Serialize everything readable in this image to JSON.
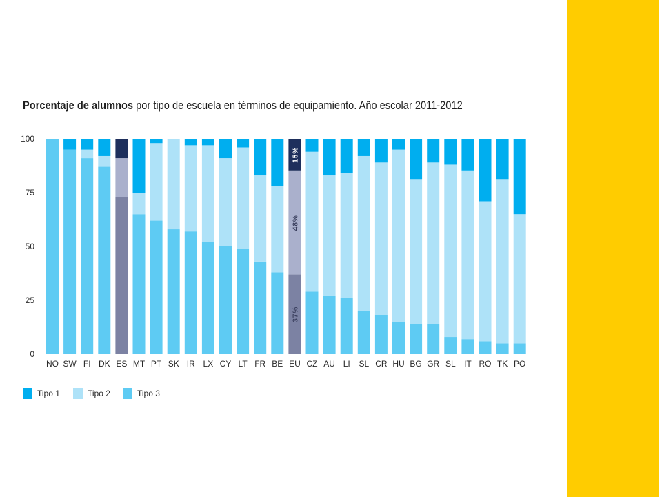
{
  "title_bold": "Porcentaje de alumnos",
  "title_rest": " por tipo de escuela en términos de equipamiento. Año escolar 2011-2012",
  "colors": {
    "tipo1": "#00aeef",
    "tipo2": "#aee2f8",
    "tipo3": "#5ecbf3",
    "es_tipo1": "#1e2f5c",
    "es_tipo2": "#aab0cc",
    "es_tipo3": "#7c82a3",
    "side_band": "#ffcc00"
  },
  "chart_data": {
    "type": "bar",
    "stacked": true,
    "orientation": "vertical",
    "title": "Porcentaje de alumnos por tipo de escuela en términos de equipamiento. Año escolar 2011-2012",
    "ylim": [
      0,
      100
    ],
    "yticks": [
      0,
      25,
      50,
      75,
      100
    ],
    "legend_position": "bottom-left",
    "categories": [
      "NO",
      "SW",
      "FI",
      "DK",
      "ES",
      "MT",
      "PT",
      "SK",
      "IR",
      "LX",
      "CY",
      "LT",
      "FR",
      "BE",
      "EU",
      "CZ",
      "AU",
      "LI",
      "SL",
      "CR",
      "HU",
      "BG",
      "GR",
      "SL",
      "IT",
      "RO",
      "TK",
      "PO"
    ],
    "highlighted": [
      "ES",
      "EU"
    ],
    "series": [
      {
        "name": "Tipo 3",
        "values": [
          100,
          95,
          91,
          87,
          73,
          65,
          62,
          58,
          57,
          52,
          50,
          49,
          43,
          38,
          37,
          29,
          27,
          26,
          20,
          18,
          15,
          14,
          14,
          8,
          7,
          6,
          5,
          5
        ]
      },
      {
        "name": "Tipo 2",
        "values": [
          0,
          0,
          4,
          5,
          18,
          10,
          36,
          42,
          40,
          45,
          41,
          47,
          40,
          40,
          48,
          65,
          56,
          58,
          72,
          71,
          80,
          67,
          75,
          80,
          78,
          65,
          76,
          60
        ]
      },
      {
        "name": "Tipo 1",
        "values": [
          0,
          5,
          5,
          8,
          9,
          25,
          2,
          0,
          3,
          3,
          9,
          4,
          17,
          22,
          15,
          6,
          17,
          16,
          8,
          11,
          5,
          19,
          11,
          12,
          15,
          29,
          19,
          35
        ]
      }
    ],
    "data_labels": [
      {
        "category": "EU",
        "series": "Tipo 1",
        "text": "15%"
      },
      {
        "category": "EU",
        "series": "Tipo 2",
        "text": "48%"
      },
      {
        "category": "EU",
        "series": "Tipo 3",
        "text": "37%"
      }
    ]
  }
}
